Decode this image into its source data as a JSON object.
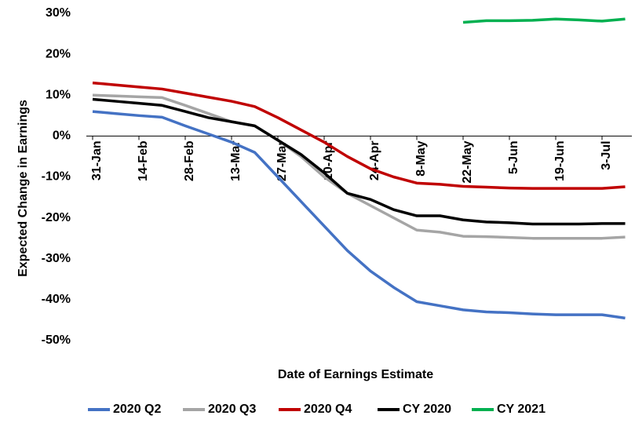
{
  "chart_data": {
    "type": "line",
    "y_label": "Expected Change in Earnings",
    "x_label": "Date of Earnings Estimate",
    "categories": [
      "31-Jan",
      null,
      "14-Feb",
      null,
      "28-Feb",
      null,
      "13-Mar",
      null,
      "27-Mar",
      null,
      "10-Apr",
      null,
      "24-Apr",
      null,
      "8-May",
      null,
      "22-May",
      null,
      "5-Jun",
      null,
      "19-Jun",
      null,
      "3-Jul",
      null
    ],
    "ylim": [
      -50,
      30
    ],
    "yticks": [
      {
        "value": -50,
        "label": "-50%"
      },
      {
        "value": -40,
        "label": "-40%"
      },
      {
        "value": -30,
        "label": "-30%"
      },
      {
        "value": -20,
        "label": "-20%"
      },
      {
        "value": -10,
        "label": "-10%"
      },
      {
        "value": 0,
        "label": "0%"
      },
      {
        "value": 10,
        "label": "10%"
      },
      {
        "value": 20,
        "label": "20%"
      },
      {
        "value": 30,
        "label": "30%"
      }
    ],
    "legend": "bottom",
    "series": [
      {
        "name": "2020 Q2",
        "color": "#4472c4",
        "values": [
          6,
          5.5,
          5,
          4.6,
          2.5,
          0.5,
          -1.5,
          -4,
          -10,
          -16,
          -22,
          -28,
          -33,
          -37,
          -40.5,
          -41.5,
          -42.5,
          -43,
          -43.2,
          -43.5,
          -43.7,
          -43.7,
          -43.7,
          -44.5
        ]
      },
      {
        "name": "2020 Q3",
        "color": "#a5a5a5",
        "values": [
          10,
          9.8,
          9.6,
          9.4,
          7.5,
          5.5,
          3.5,
          2.5,
          -1,
          -5,
          -10,
          -14,
          -17,
          -20,
          -23,
          -23.5,
          -24.5,
          -24.6,
          -24.8,
          -25,
          -25,
          -25,
          -25,
          -24.7
        ]
      },
      {
        "name": "2020 Q4",
        "color": "#c00000",
        "values": [
          13,
          12.5,
          12,
          11.5,
          10.5,
          9.5,
          8.5,
          7.2,
          4.5,
          1.5,
          -1.5,
          -5,
          -8,
          -10,
          -11.5,
          -11.8,
          -12.3,
          -12.5,
          -12.7,
          -12.8,
          -12.8,
          -12.8,
          -12.8,
          -12.4
        ]
      },
      {
        "name": "CY 2020",
        "color": "#000000",
        "values": [
          9,
          8.5,
          8,
          7.5,
          6,
          4.5,
          3.5,
          2.5,
          -1,
          -4.5,
          -9,
          -14,
          -15.5,
          -18,
          -19.5,
          -19.5,
          -20.5,
          -21,
          -21.2,
          -21.5,
          -21.5,
          -21.5,
          -21.4,
          -21.4
        ]
      },
      {
        "name": "CY 2021",
        "color": "#00b050",
        "values": [
          null,
          null,
          null,
          null,
          null,
          null,
          null,
          null,
          null,
          null,
          null,
          null,
          null,
          null,
          null,
          null,
          27.8,
          28.2,
          28.2,
          28.3,
          28.6,
          28.4,
          28.1,
          28.6
        ]
      }
    ]
  }
}
